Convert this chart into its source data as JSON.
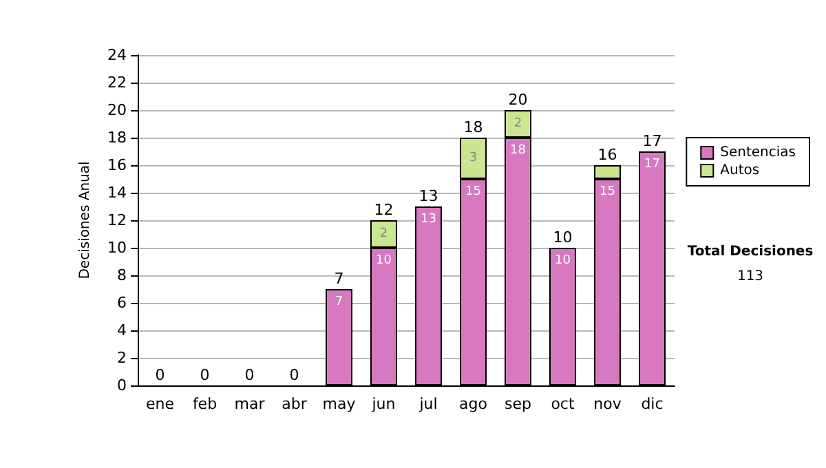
{
  "chart_data": {
    "type": "bar",
    "ylabel": "Decisiones Anual",
    "categories": [
      "ene",
      "feb",
      "mar",
      "abr",
      "may",
      "jun",
      "jul",
      "ago",
      "sep",
      "oct",
      "nov",
      "dic"
    ],
    "stacked": true,
    "series": [
      {
        "name": "Sentencias",
        "color": "#d878c0",
        "values": [
          0,
          0,
          0,
          0,
          7,
          10,
          13,
          15,
          18,
          10,
          15,
          17
        ],
        "value_labels": [
          null,
          null,
          null,
          null,
          "7",
          "10",
          "13",
          "15",
          "18",
          "10",
          "15",
          "17"
        ]
      },
      {
        "name": "Autos",
        "color": "#cce590",
        "values": [
          0,
          0,
          0,
          0,
          0,
          2,
          0,
          3,
          2,
          0,
          1,
          0
        ],
        "value_labels": [
          null,
          null,
          null,
          null,
          null,
          "2",
          null,
          "3",
          "2",
          null,
          null,
          null
        ]
      }
    ],
    "totals": [
      "0",
      "0",
      "0",
      "0",
      "7",
      "12",
      "13",
      "18",
      "20",
      "10",
      "16",
      "17"
    ],
    "ylim": [
      0,
      24
    ],
    "yticks": [
      0,
      2,
      4,
      6,
      8,
      10,
      12,
      14,
      16,
      18,
      20,
      22,
      24
    ],
    "grid": "y",
    "legend": "right",
    "annotations": [
      "Total Decisiones",
      "113"
    ]
  }
}
